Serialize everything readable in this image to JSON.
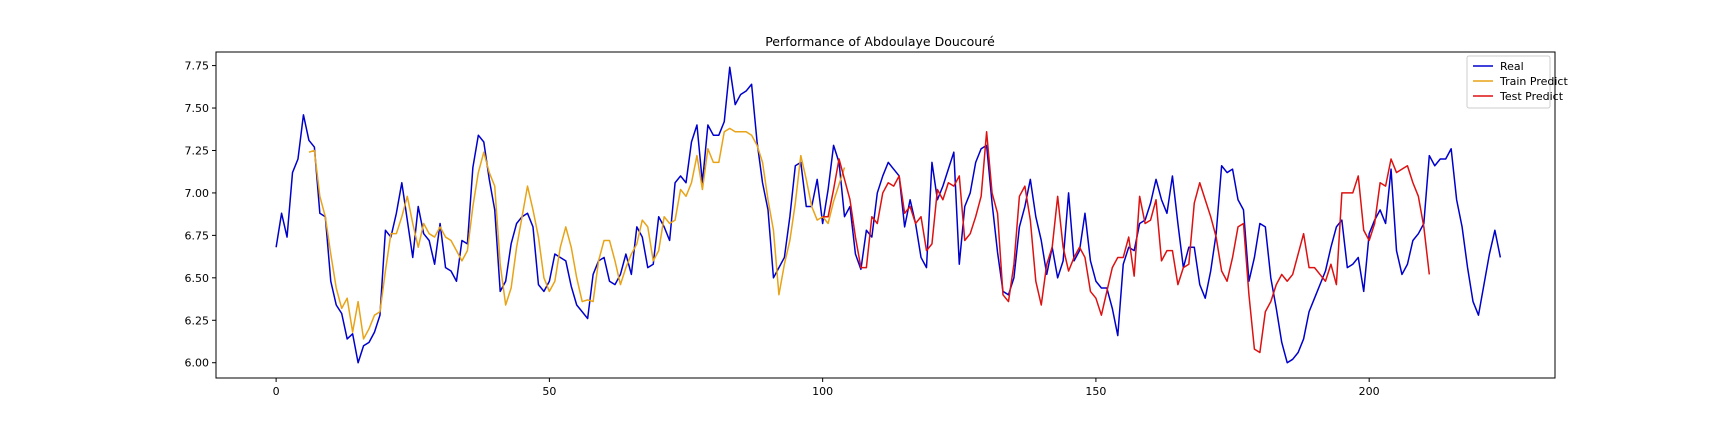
{
  "chart_data": {
    "type": "line",
    "title": "Performance of Abdoulaye Doucouré",
    "xlabel": "",
    "ylabel": "",
    "xlim": [
      -11,
      234
    ],
    "ylim": [
      5.91,
      7.83
    ],
    "xticks": [
      0,
      50,
      100,
      150,
      200
    ],
    "yticks": [
      6.0,
      6.25,
      6.5,
      6.75,
      7.0,
      7.25,
      7.5,
      7.75
    ],
    "ytick_labels": [
      "6.00",
      "6.25",
      "6.50",
      "6.75",
      "7.00",
      "7.25",
      "7.50",
      "7.75"
    ],
    "legend_position": "top-right",
    "grid": false,
    "series": [
      {
        "name": "Real",
        "color": "#0000cd",
        "x_start": 0,
        "values": [
          6.68,
          6.88,
          6.74,
          7.12,
          7.2,
          7.46,
          7.31,
          7.27,
          6.88,
          6.86,
          6.48,
          6.34,
          6.29,
          6.14,
          6.17,
          6.0,
          6.1,
          6.12,
          6.18,
          6.28,
          6.78,
          6.74,
          6.88,
          7.06,
          6.84,
          6.62,
          6.92,
          6.76,
          6.72,
          6.58,
          6.82,
          6.56,
          6.54,
          6.48,
          6.72,
          6.7,
          7.15,
          7.34,
          7.3,
          7.08,
          6.9,
          6.42,
          6.48,
          6.7,
          6.82,
          6.86,
          6.88,
          6.8,
          6.46,
          6.42,
          6.48,
          6.64,
          6.62,
          6.6,
          6.45,
          6.34,
          6.3,
          6.26,
          6.52,
          6.6,
          6.62,
          6.48,
          6.46,
          6.52,
          6.64,
          6.52,
          6.8,
          6.74,
          6.56,
          6.58,
          6.86,
          6.8,
          6.72,
          7.06,
          7.1,
          7.06,
          7.3,
          7.4,
          7.06,
          7.4,
          7.34,
          7.34,
          7.42,
          7.74,
          7.52,
          7.58,
          7.6,
          7.64,
          7.3,
          7.06,
          6.9,
          6.5,
          6.56,
          6.62,
          6.86,
          7.16,
          7.18,
          6.92,
          6.92,
          7.08,
          6.82,
          7.02,
          7.28,
          7.18,
          6.86,
          6.92,
          6.64,
          6.55,
          6.78,
          6.74,
          7.0,
          7.1,
          7.18,
          7.14,
          7.1,
          6.8,
          6.96,
          6.82,
          6.62,
          6.56,
          7.18,
          6.96,
          7.04,
          7.14,
          7.24,
          6.58,
          6.92,
          7.0,
          7.18,
          7.26,
          7.28,
          6.94,
          6.65,
          6.42,
          6.4,
          6.5,
          6.8,
          6.92,
          7.08,
          6.86,
          6.72,
          6.52,
          6.68,
          6.5,
          6.6,
          7.0,
          6.6,
          6.66,
          6.88,
          6.6,
          6.48,
          6.44,
          6.44,
          6.32,
          6.16,
          6.58,
          6.68,
          6.66,
          6.82,
          6.84,
          6.94,
          7.08,
          6.96,
          6.88,
          7.1,
          6.82,
          6.56,
          6.68,
          6.68,
          6.46,
          6.38,
          6.54,
          6.76,
          7.16,
          7.12,
          7.14,
          6.96,
          6.9,
          6.48,
          6.62,
          6.82,
          6.8,
          6.5,
          6.32,
          6.12,
          6.0,
          6.02,
          6.06,
          6.14,
          6.3,
          6.38,
          6.46,
          6.54,
          6.68,
          6.8,
          6.84,
          6.56,
          6.58,
          6.62,
          6.42,
          6.76,
          6.84,
          6.9,
          6.82,
          7.14,
          6.66,
          6.52,
          6.58,
          6.72,
          6.76,
          6.82,
          7.22,
          7.16,
          7.2,
          7.2,
          7.26,
          6.96,
          6.8,
          6.56,
          6.36,
          6.28,
          6.46,
          6.64,
          6.78,
          6.62
        ]
      },
      {
        "name": "Train Predict",
        "color": "#e8a317",
        "x_start": 6,
        "values": [
          7.24,
          7.25,
          6.98,
          6.86,
          6.64,
          6.44,
          6.32,
          6.38,
          6.18,
          6.36,
          6.14,
          6.2,
          6.28,
          6.3,
          6.54,
          6.76,
          6.76,
          6.86,
          6.98,
          6.82,
          6.68,
          6.82,
          6.76,
          6.74,
          6.8,
          6.74,
          6.72,
          6.66,
          6.6,
          6.66,
          6.92,
          7.12,
          7.24,
          7.12,
          7.04,
          6.58,
          6.34,
          6.44,
          6.68,
          6.86,
          7.04,
          6.9,
          6.74,
          6.5,
          6.42,
          6.48,
          6.68,
          6.8,
          6.68,
          6.5,
          6.36,
          6.37,
          6.36,
          6.6,
          6.72,
          6.72,
          6.6,
          6.46,
          6.56,
          6.64,
          6.7,
          6.84,
          6.8,
          6.6,
          6.66,
          6.86,
          6.82,
          6.84,
          7.02,
          6.98,
          7.06,
          7.22,
          7.02,
          7.26,
          7.18,
          7.18,
          7.36,
          7.38,
          7.36,
          7.36,
          7.36,
          7.34,
          7.28,
          7.18,
          6.96,
          6.78,
          6.4,
          6.58,
          6.72,
          6.94,
          7.22,
          7.08,
          6.92,
          6.84,
          6.86,
          6.82,
          6.95,
          7.05,
          7.15
        ]
      },
      {
        "name": "Test Predict",
        "color": "#dd1111",
        "x_start": 100,
        "values": [
          6.86,
          6.86,
          7.02,
          7.2,
          7.08,
          6.96,
          6.74,
          6.56,
          6.56,
          6.86,
          6.82,
          7.0,
          7.06,
          7.04,
          7.1,
          6.88,
          6.92,
          6.82,
          6.86,
          6.66,
          6.7,
          7.02,
          6.96,
          7.06,
          7.04,
          7.1,
          6.72,
          6.76,
          6.86,
          6.98,
          7.36,
          7.0,
          6.88,
          6.4,
          6.36,
          6.58,
          6.98,
          7.04,
          6.84,
          6.48,
          6.34,
          6.58,
          6.68,
          6.98,
          6.68,
          6.54,
          6.62,
          6.68,
          6.62,
          6.42,
          6.38,
          6.28,
          6.42,
          6.56,
          6.62,
          6.62,
          6.74,
          6.51,
          6.98,
          6.82,
          6.84,
          6.96,
          6.6,
          6.66,
          6.66,
          6.46,
          6.56,
          6.58,
          6.94,
          7.06,
          6.96,
          6.86,
          6.74,
          6.54,
          6.48,
          6.62,
          6.8,
          6.82,
          6.4,
          6.08,
          6.06,
          6.3,
          6.36,
          6.46,
          6.52,
          6.48,
          6.52,
          6.64,
          6.76,
          6.56,
          6.56,
          6.52,
          6.48,
          6.58,
          6.46,
          7.0,
          7.0,
          7.0,
          7.1,
          6.78,
          6.72,
          6.82,
          7.06,
          7.04,
          7.2,
          7.12,
          7.14,
          7.16,
          7.06,
          6.98,
          6.8,
          6.52
        ]
      }
    ]
  }
}
